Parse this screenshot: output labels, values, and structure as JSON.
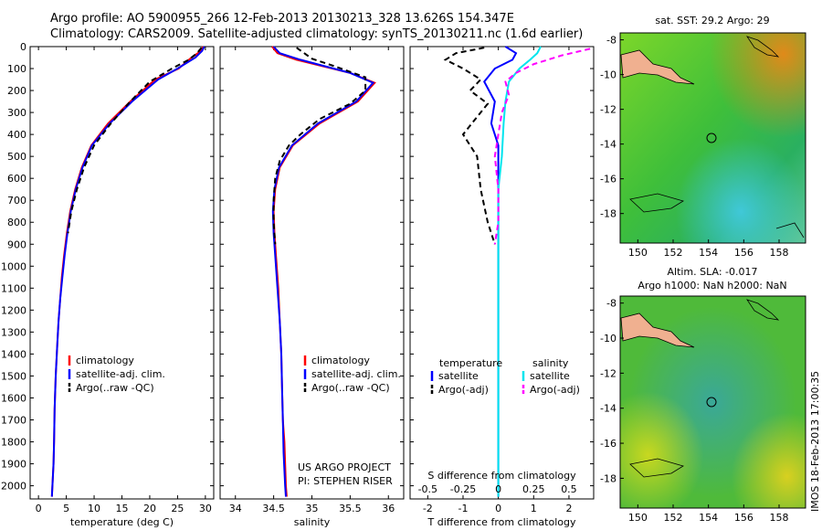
{
  "header": {
    "line1": "Argo profile: AO 5900955_266 12-Feb-2013 20130213_328 13.626S 154.347E",
    "line2": "Climatology: CARS2009. Satellite-adjusted climatology: synTS_20130211.nc (1.6d earlier)"
  },
  "colors": {
    "climatology": "#ff0000",
    "satellite": "#0000ff",
    "argo": "#000000",
    "satellite_salinity": "#00e5ee",
    "argo_salinity_adj": "#ff00ff"
  },
  "chart_data": [
    {
      "type": "line",
      "panel": "temperature",
      "xlabel": "temperature (deg C)",
      "ylabel": "",
      "xlim": [
        -1.5,
        31.5
      ],
      "ylim": [
        2060,
        0
      ],
      "invert_y": true,
      "xticks": [
        0,
        5,
        10,
        15,
        20,
        25,
        30
      ],
      "yticks": [
        0,
        100,
        200,
        300,
        400,
        500,
        600,
        700,
        800,
        900,
        1000,
        1100,
        1200,
        1300,
        1400,
        1500,
        1600,
        1700,
        1800,
        1900,
        2000
      ],
      "legend": [
        "climatology",
        "satellite-adj. clim.",
        "Argo(..raw -QC)"
      ],
      "series": [
        {
          "name": "climatology",
          "style": "solid",
          "color": "#ff0000",
          "x": [
            29.6,
            29.2,
            27.5,
            25.2,
            21.0,
            16.5,
            12.5,
            9.5,
            7.8,
            6.6,
            5.7,
            5.1,
            4.6,
            4.2,
            3.9,
            3.6,
            3.4,
            3.1,
            2.9,
            2.8,
            2.7,
            2.5,
            2.4
          ],
          "y": [
            0,
            20,
            50,
            100,
            150,
            250,
            350,
            450,
            550,
            650,
            750,
            850,
            950,
            1050,
            1150,
            1250,
            1350,
            1500,
            1650,
            1800,
            1900,
            2000,
            2050
          ]
        },
        {
          "name": "satellite-adj. clim.",
          "style": "solid",
          "color": "#0000ff",
          "x": [
            29.8,
            29.4,
            28.2,
            25.0,
            21.5,
            16.8,
            12.8,
            9.6,
            7.9,
            6.7,
            5.8,
            5.2,
            4.7,
            4.3,
            3.9,
            3.6,
            3.4,
            3.1,
            2.9,
            2.8,
            2.7,
            2.5,
            2.4
          ],
          "y": [
            0,
            20,
            50,
            100,
            150,
            250,
            350,
            450,
            550,
            650,
            750,
            850,
            950,
            1050,
            1150,
            1250,
            1350,
            1500,
            1650,
            1800,
            1900,
            2000,
            2050
          ]
        },
        {
          "name": "Argo(..raw -QC)",
          "style": "dashed",
          "color": "#000000",
          "x": [
            29.3,
            28.5,
            27.0,
            24.0,
            20.0,
            16.5,
            13.0,
            10.0,
            8.2,
            6.9,
            5.9,
            5.3
          ],
          "y": [
            5,
            30,
            60,
            100,
            160,
            250,
            350,
            450,
            550,
            650,
            750,
            850
          ]
        }
      ]
    },
    {
      "type": "line",
      "panel": "salinity",
      "xlabel": "salinity",
      "ylabel": "",
      "xlim": [
        33.8,
        36.2
      ],
      "ylim": [
        2060,
        0
      ],
      "invert_y": true,
      "xticks": [
        34,
        34.5,
        35,
        35.5,
        36
      ],
      "xtick_labels": [
        "34",
        "34.5",
        "35",
        "35.5",
        "36"
      ],
      "legend": [
        "climatology",
        "satellite-adj. clim.",
        "Argo(..raw -QC)"
      ],
      "annotations": [
        "US ARGO PROJECT",
        "PI: STEPHEN RISER"
      ],
      "series": [
        {
          "name": "climatology",
          "style": "solid",
          "color": "#ff0000",
          "x": [
            34.48,
            34.55,
            34.8,
            35.5,
            35.82,
            35.6,
            35.1,
            34.75,
            34.58,
            34.52,
            34.5,
            34.51,
            34.53,
            34.56,
            34.58,
            34.6,
            34.61,
            34.62,
            34.64,
            34.65,
            34.66,
            34.67
          ],
          "y": [
            0,
            30,
            60,
            120,
            165,
            250,
            350,
            450,
            550,
            650,
            750,
            850,
            950,
            1100,
            1250,
            1400,
            1550,
            1700,
            1800,
            1900,
            2000,
            2050
          ]
        },
        {
          "name": "satellite-adj. clim.",
          "style": "solid",
          "color": "#0000ff",
          "x": [
            34.5,
            34.58,
            34.85,
            35.5,
            35.8,
            35.58,
            35.08,
            34.74,
            34.57,
            34.51,
            34.49,
            34.5,
            34.52,
            34.55,
            34.58,
            34.6,
            34.61,
            34.62,
            34.63,
            34.65,
            34.66
          ],
          "y": [
            0,
            30,
            60,
            120,
            165,
            250,
            350,
            450,
            550,
            650,
            750,
            850,
            950,
            1100,
            1250,
            1400,
            1550,
            1700,
            1850,
            2000,
            2050
          ]
        },
        {
          "name": "Argo(..raw -QC)",
          "style": "dashed",
          "color": "#000000",
          "x": [
            34.8,
            34.9,
            35.0,
            35.3,
            35.7,
            35.7,
            35.5,
            35.1,
            34.85,
            34.7,
            34.58,
            34.52,
            34.5,
            34.5,
            34.52
          ],
          "y": [
            5,
            30,
            55,
            90,
            140,
            200,
            260,
            330,
            400,
            450,
            520,
            600,
            700,
            800,
            900
          ]
        }
      ]
    },
    {
      "type": "line",
      "panel": "differences",
      "xlabel": "T difference from climatology",
      "xlabel_top": "S difference from climatology",
      "ylabel": "",
      "xlim": [
        -2.5,
        2.7
      ],
      "ylim": [
        2060,
        0
      ],
      "invert_y": true,
      "xticks": [
        -2,
        -1,
        0,
        1,
        2
      ],
      "s_xticks": [
        -0.5,
        -0.25,
        0,
        0.25,
        0.5
      ],
      "legend": {
        "temperature_title": "temperature",
        "salinity_title": "salinity",
        "items": [
          "satellite",
          "Argo(-adj)",
          "satellite",
          "Argo(-adj)"
        ]
      },
      "series": [
        {
          "name": "temperature satellite",
          "style": "solid",
          "color": "#0000ff",
          "x": [
            0.2,
            0.5,
            0.4,
            -0.1,
            -0.4,
            -0.1,
            -0.2,
            0.0,
            0.0,
            0.0
          ],
          "y": [
            0,
            30,
            60,
            100,
            160,
            250,
            350,
            450,
            600,
            2050
          ]
        },
        {
          "name": "temperature Argo(-adj)",
          "style": "dashed",
          "color": "#000000",
          "x": [
            -0.4,
            -1.2,
            -1.5,
            -1.0,
            -0.5,
            -0.8,
            -0.3,
            -0.6,
            -1.0,
            -0.6,
            -0.5,
            -0.3,
            -0.1
          ],
          "y": [
            5,
            30,
            60,
            100,
            150,
            200,
            260,
            320,
            400,
            500,
            650,
            800,
            900
          ]
        },
        {
          "name": "salinity satellite",
          "style": "solid",
          "color": "#00e5ee",
          "x": [
            1.2,
            1.1,
            0.9,
            0.6,
            0.3,
            0.2,
            0.15,
            0.1,
            0.0,
            0.0
          ],
          "y": [
            0,
            30,
            60,
            100,
            160,
            250,
            350,
            500,
            650,
            2050
          ]
        },
        {
          "name": "salinity Argo(-adj)",
          "style": "dashed",
          "color": "#ff00ff",
          "x": [
            2.6,
            1.8,
            1.0,
            0.5,
            0.2,
            0.3,
            0.1,
            0.0,
            -0.1,
            0.0,
            0.0,
            -0.1
          ],
          "y": [
            10,
            40,
            80,
            120,
            160,
            220,
            300,
            400,
            500,
            650,
            800,
            900
          ]
        }
      ]
    }
  ],
  "maps": [
    {
      "title": "sat. SST: 29.2 Argo: 29",
      "xticks": [
        "150",
        "152",
        "154",
        "156",
        "158"
      ],
      "yticks": [
        "-8",
        "-10",
        "-12",
        "-14",
        "-16",
        "-18"
      ]
    },
    {
      "title_line1": "Altim. SLA: -0.017",
      "title_line2": "Argo h1000: NaN h2000: NaN",
      "xticks": [
        "150",
        "152",
        "154",
        "156",
        "158"
      ],
      "yticks": [
        "-8",
        "-10",
        "-12",
        "-14",
        "-16",
        "-18"
      ]
    }
  ],
  "footer_vertical": "IMOS 18-Feb-2013 17:00:35"
}
